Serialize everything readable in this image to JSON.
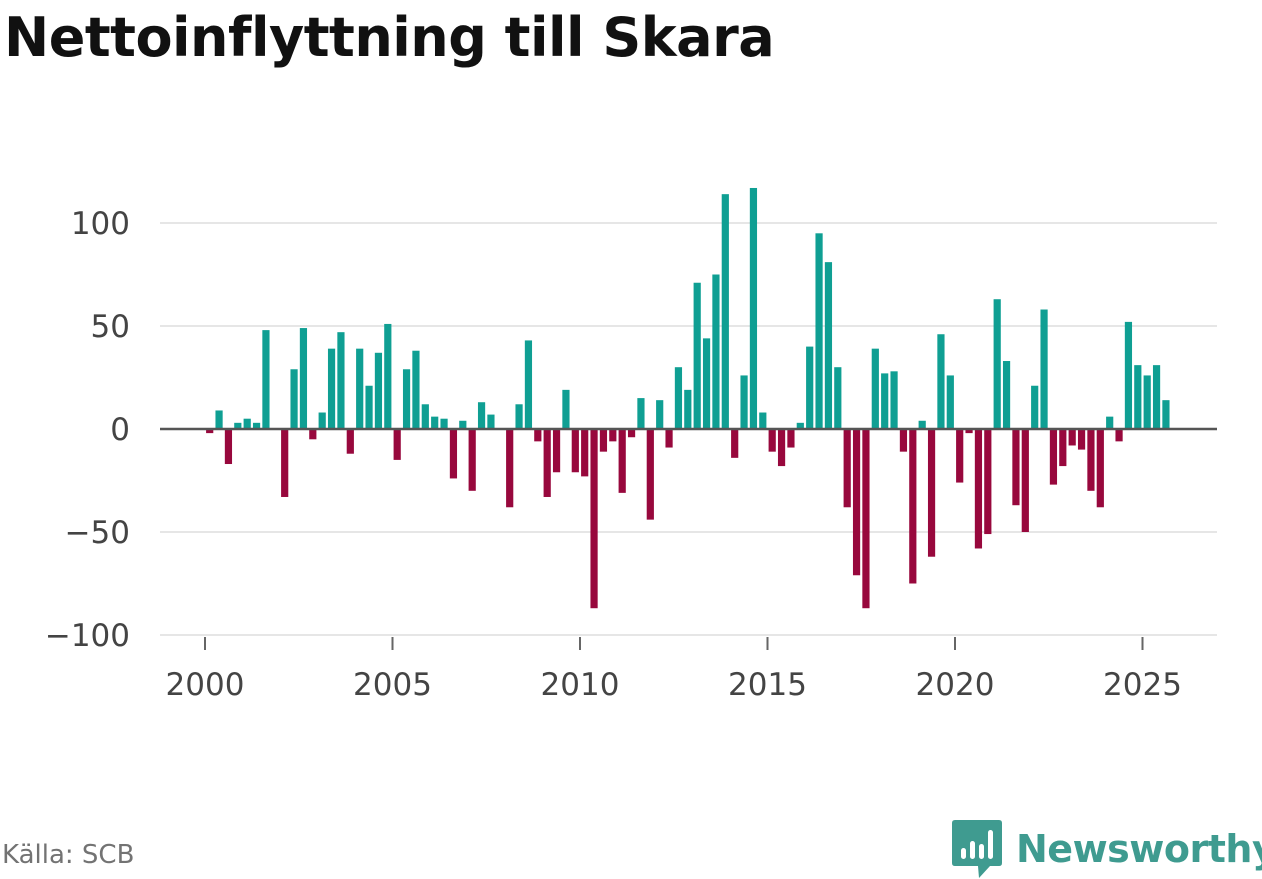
{
  "title": "Nettoinflyttning till Skara",
  "source": "Källa: SCB",
  "brand": {
    "name": "Newsworthy",
    "icon": "bar-chart-bubble-icon"
  },
  "colors": {
    "positive": "#0f9f93",
    "negative": "#98083d",
    "gridline": "#dddddd",
    "zero_line": "#555555",
    "axis_text": "#444444",
    "title": "#111111",
    "source": "#737373",
    "brand": "#3f9b90"
  },
  "chart_data": {
    "type": "bar",
    "title": "Nettoinflyttning till Skara",
    "xlabel": "",
    "ylabel": "",
    "granularity": "quarterly",
    "start_year": 2000,
    "start_quarter": 1,
    "ylim": [
      -100,
      120
    ],
    "y_ticks": [
      100,
      50,
      0,
      -50,
      -100
    ],
    "y_tick_labels": [
      "100",
      "50",
      "0",
      "−50",
      "−100"
    ],
    "x_ticks": [
      2000,
      2005,
      2010,
      2015,
      2020,
      2025
    ],
    "x_tick_labels": [
      "2000",
      "2005",
      "2010",
      "2015",
      "2020",
      "2025"
    ],
    "grid": true,
    "values": [
      -2,
      9,
      -17,
      3,
      5,
      3,
      48,
      0,
      -33,
      29,
      49,
      -5,
      8,
      39,
      47,
      -12,
      39,
      21,
      37,
      51,
      -15,
      29,
      38,
      12,
      6,
      5,
      -24,
      4,
      -30,
      13,
      7,
      0,
      -38,
      12,
      43,
      -6,
      -33,
      -21,
      19,
      -21,
      -23,
      -87,
      -11,
      -6,
      -31,
      -4,
      15,
      -44,
      14,
      -9,
      30,
      19,
      71,
      44,
      75,
      114,
      -14,
      26,
      117,
      8,
      -11,
      -18,
      -9,
      3,
      40,
      95,
      81,
      30,
      -38,
      -71,
      -87,
      39,
      27,
      28,
      -11,
      -75,
      4,
      -62,
      46,
      26,
      -26,
      -2,
      -58,
      -51,
      63,
      33,
      -37,
      -50,
      21,
      58,
      -27,
      -18,
      -8,
      -10,
      -30,
      -38,
      6,
      -6,
      52,
      31,
      26,
      31,
      14
    ]
  }
}
